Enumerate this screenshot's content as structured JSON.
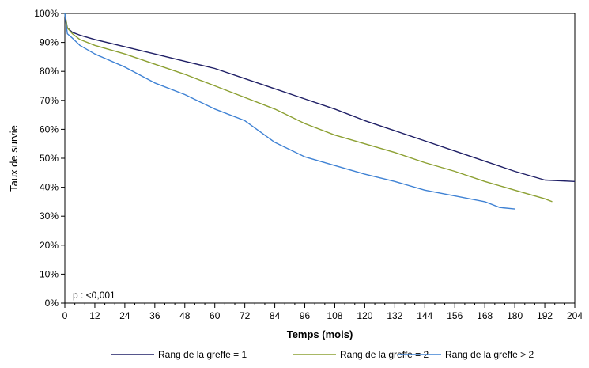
{
  "chart_data": {
    "type": "line",
    "xlabel": "Temps (mois)",
    "ylabel": "Taux de survie",
    "xlim": [
      0,
      204
    ],
    "ylim": [
      0,
      100
    ],
    "x_ticks": [
      0,
      12,
      24,
      36,
      48,
      60,
      72,
      84,
      96,
      108,
      120,
      132,
      144,
      156,
      168,
      180,
      192,
      204
    ],
    "y_ticks": [
      0,
      10,
      20,
      30,
      40,
      50,
      60,
      70,
      80,
      90,
      100
    ],
    "y_tick_labels": [
      "0%",
      "10%",
      "20%",
      "30%",
      "40%",
      "50%",
      "60%",
      "70%",
      "80%",
      "90%",
      "100%"
    ],
    "annotation": "p : <0,001",
    "legend_position": "bottom",
    "series": [
      {
        "name": "Rang de la greffe = 1",
        "color": "#1f1f66",
        "x": [
          0,
          1,
          3,
          6,
          12,
          24,
          36,
          48,
          60,
          72,
          84,
          96,
          108,
          120,
          132,
          144,
          156,
          168,
          180,
          192,
          204
        ],
        "y": [
          100,
          95,
          93.5,
          92.5,
          91,
          88.5,
          86,
          83.5,
          81,
          77.5,
          74,
          70.5,
          67,
          63,
          59.5,
          56,
          52.5,
          49,
          45.5,
          42.5,
          42
        ]
      },
      {
        "name": "Rang de la greffe = 2",
        "color": "#8ca032",
        "x": [
          0,
          1,
          3,
          6,
          12,
          24,
          36,
          48,
          60,
          72,
          84,
          96,
          108,
          120,
          132,
          144,
          156,
          168,
          180,
          192,
          195
        ],
        "y": [
          100,
          95,
          93,
          91,
          89,
          86,
          82.5,
          79,
          75,
          71,
          67,
          62,
          58,
          55,
          52,
          48.5,
          45.5,
          42,
          39,
          36,
          35
        ]
      },
      {
        "name": "Rang de la greffe > 2",
        "color": "#3f82d4",
        "x": [
          0,
          1,
          3,
          6,
          12,
          24,
          36,
          48,
          60,
          72,
          84,
          96,
          108,
          120,
          132,
          144,
          156,
          168,
          174,
          180
        ],
        "y": [
          100,
          93,
          91.5,
          89,
          86,
          81.5,
          76,
          72,
          67,
          63,
          55.5,
          50.5,
          47.5,
          44.5,
          42,
          39,
          37,
          35,
          33,
          32.5
        ]
      }
    ]
  }
}
